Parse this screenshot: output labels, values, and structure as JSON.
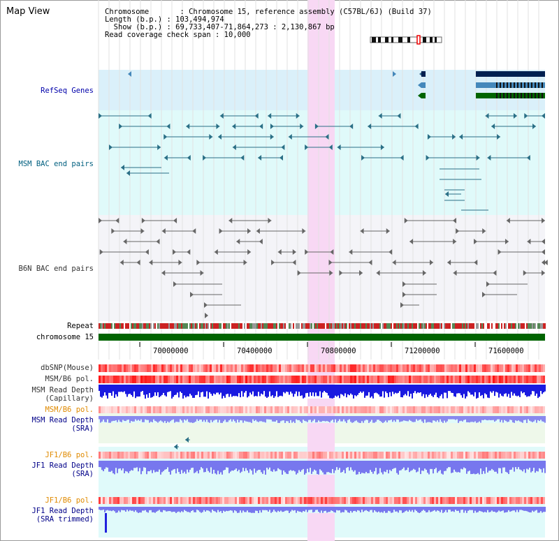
{
  "title": "Map View",
  "info": {
    "chromosome": "Chromosome       : Chromosome 15, reference assembly (C57BL/6J) (Build 37)",
    "length": "Length (b.p.) : 103,494,974",
    "show": "  Show (b.p.) : 69,733,407-71,864,273 : 2,130,867 bp",
    "coverage": "Read coverage check span : 10,000"
  },
  "tracks": {
    "refseq": "RefSeq Genes",
    "msm_bac": "MSM BAC end pairs",
    "b6n_bac": "B6N BAC end pairs",
    "repeat": "Repeat",
    "chromosome": "chromosome 15",
    "dbsnp": "dbSNP(Mouse)",
    "msm_b6_pol": "MSM/B6 pol.",
    "msm_read_depth_cap_1": "MSM Read Depth",
    "msm_read_depth_cap_2": "(Capillary)",
    "msm_b6_pol_2": "MSM/B6 pol.",
    "msm_read_depth_sra_1": "MSM Read Depth",
    "msm_read_depth_sra_2": "(SRA)",
    "jf1_b6_pol": "JF1/B6 pol.",
    "jf1_read_depth_1": "JF1 Read Depth",
    "jf1_read_depth_2": "(SRA)",
    "jf1_b6_pol_2": "JF1/B6 pol.",
    "jf1_read_depth_trim_1": "JF1 Read Depth",
    "jf1_read_depth_trim_2": "(SRA trimmed)"
  },
  "axis_ticks": [
    "70000000",
    "70400000",
    "70800000",
    "71200000",
    "71600000"
  ],
  "colors": {
    "refseq_bg": "#daf0fa",
    "teal_bg": "#e0fafa",
    "gray_bg": "#f4f4f8",
    "highlight": "#f8d8f4",
    "chromosome_bar": "#006400"
  }
}
